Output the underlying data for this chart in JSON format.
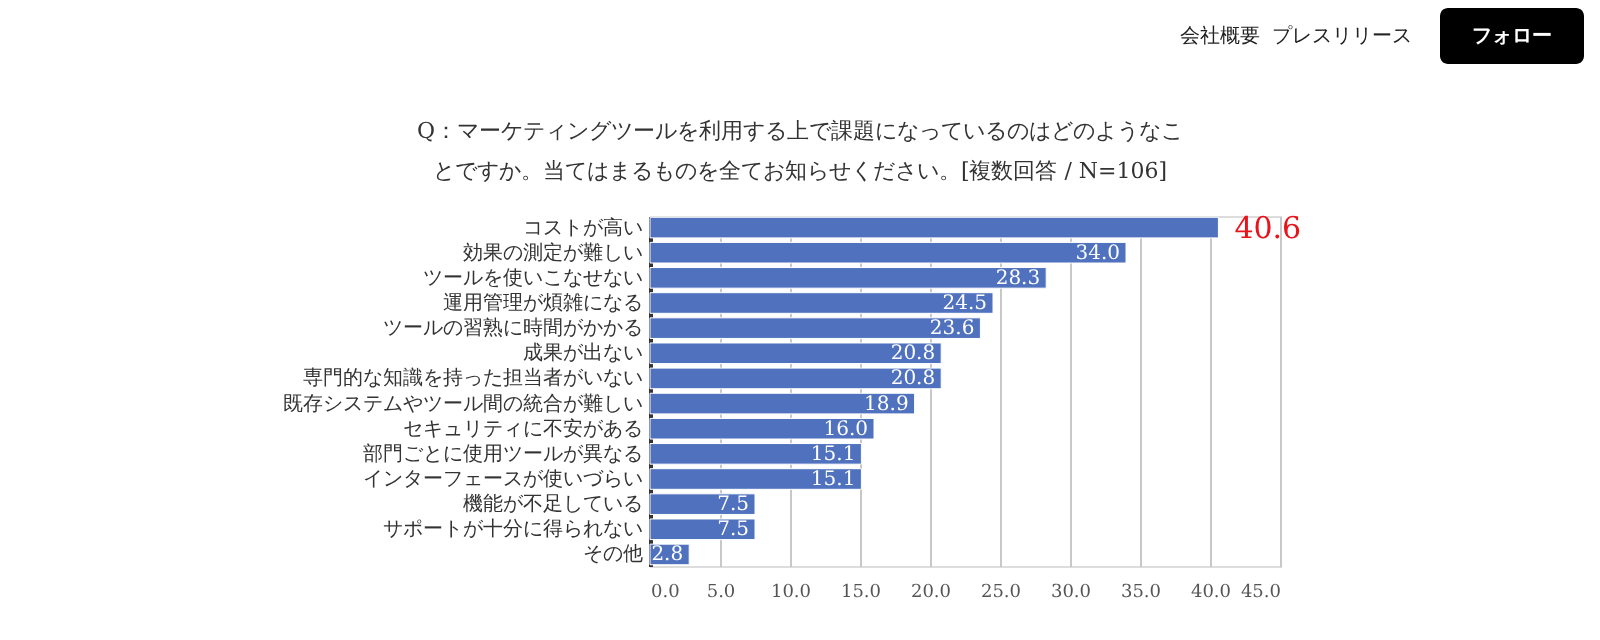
{
  "chart_data": {
    "type": "bar",
    "orientation": "horizontal",
    "title": [
      "Q：マーケティングツールを利用する上で課題になっているのはどのようなこ",
      "とですか。当てはまるものを全てお知らせください。[複数回答 / N=106]"
    ],
    "categories": [
      "コストが高い",
      "効果の測定が難しい",
      "ツールを使いこなせない",
      "運用管理が煩雑になる",
      "ツールの習熟に時間がかかる",
      "成果が出ない",
      "専門的な知識を持った担当者がいない",
      "既存システムやツール間の統合が難しい",
      "セキュリティに不安がある",
      "部門ごとに使用ツールが異なる",
      "インターフェースが使いづらい",
      "機能が不足している",
      "サポートが十分に得られない",
      "その他"
    ],
    "values": [
      40.6,
      34.0,
      28.3,
      24.5,
      23.6,
      20.8,
      20.8,
      18.9,
      16.0,
      15.1,
      15.1,
      7.5,
      7.5,
      2.8
    ],
    "value_labels": [
      "40.6",
      "34.0",
      "28.3",
      "24.5",
      "23.6",
      "20.8",
      "20.8",
      "18.9",
      "16.0",
      "15.1",
      "15.1",
      "7.5",
      "7.5",
      "2.8"
    ],
    "color": "#4f71be",
    "xlim": [
      0,
      45
    ],
    "xticks": [
      {
        "value": 0,
        "label": "0.0"
      },
      {
        "value": 5,
        "label": "5.0"
      },
      {
        "value": 10,
        "label": "10.0"
      },
      {
        "value": 15,
        "label": "15.0"
      },
      {
        "value": 20,
        "label": "20.0"
      },
      {
        "value": 25,
        "label": "25.0"
      },
      {
        "value": 30,
        "label": "30.0"
      },
      {
        "value": 35,
        "label": "35.0"
      },
      {
        "value": 40,
        "label": "40.0"
      },
      {
        "value": 45,
        "label": "45.0"
      }
    ],
    "grid": "x",
    "annotations": [
      "会社概要",
      "プレスリリース",
      "フォロー"
    ]
  }
}
